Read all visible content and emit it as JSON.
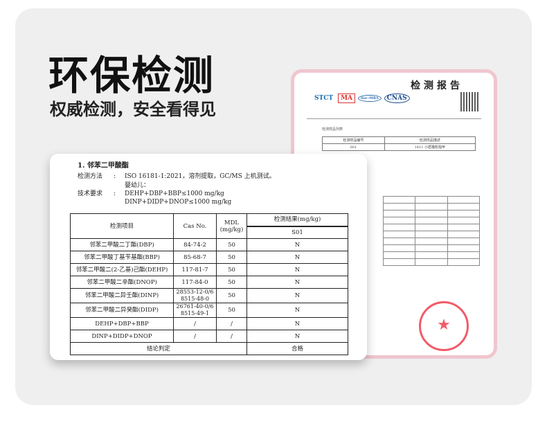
{
  "headline": "环保检测",
  "subheadline": "权威检测，安全看得见",
  "colors": {
    "card_border": "#f0c6ce",
    "panel": "#efefef",
    "stamp": "#e34455"
  },
  "back_report": {
    "title": "检测报告",
    "logos": [
      "STCT",
      "MA",
      "ilac-MRA",
      "CNAS"
    ],
    "section": "检测样品列表",
    "sample_table": {
      "headers": [
        "检测样品编号",
        "检测样品描述"
      ],
      "rows": [
        [
          "S01",
          "1411 小盾猫粉指甲"
        ]
      ]
    },
    "cert_stamp_icon": "star-stamp-icon"
  },
  "front_report": {
    "heading": "1. 邻苯二甲酸酯",
    "method_label": "检测方法",
    "method_value": "ISO 16181-1:2021，溶剂提取，GC/MS 上机测试。",
    "requirement_label": "技术要求",
    "requirement_lines": [
      "婴幼儿：",
      "DEHP+DBP+BBP≤1000 mg/kg",
      "DINP+DIDP+DNOP≤1000 mg/kg"
    ],
    "colon": ":",
    "table": {
      "headers": {
        "item": "检测项目",
        "cas": "Cas No.",
        "mdl": "MDL\n(mg/kg)",
        "result": "检测结果(mg/kg)",
        "sample": "S01"
      },
      "rows": [
        [
          "邻苯二甲酸二丁酯(DBP)",
          "84-74-2",
          "50",
          "N"
        ],
        [
          "邻苯二甲酸丁基苄基酯(BBP)",
          "85-68-7",
          "50",
          "N"
        ],
        [
          "邻苯二甲酸二(2-乙基)己酯(DEHP)",
          "117-81-7",
          "50",
          "N"
        ],
        [
          "邻苯二甲酸二辛酯(DNOP)",
          "117-84-0",
          "50",
          "N"
        ],
        [
          "邻苯二甲酸二异壬酯(DINP)",
          "28553-12-0/6\n8515-48-0",
          "50",
          "N"
        ],
        [
          "邻苯二甲酸二异癸酯(DIDP)",
          "26761-40-0/6\n8515-49-1",
          "50",
          "N"
        ],
        [
          "DEHP+DBP+BBP",
          "/",
          "/",
          "N"
        ],
        [
          "DINP+DIDP+DNOP",
          "/",
          "/",
          "N"
        ]
      ],
      "conclusion_label": "结论判定",
      "conclusion_value": "合格"
    }
  }
}
